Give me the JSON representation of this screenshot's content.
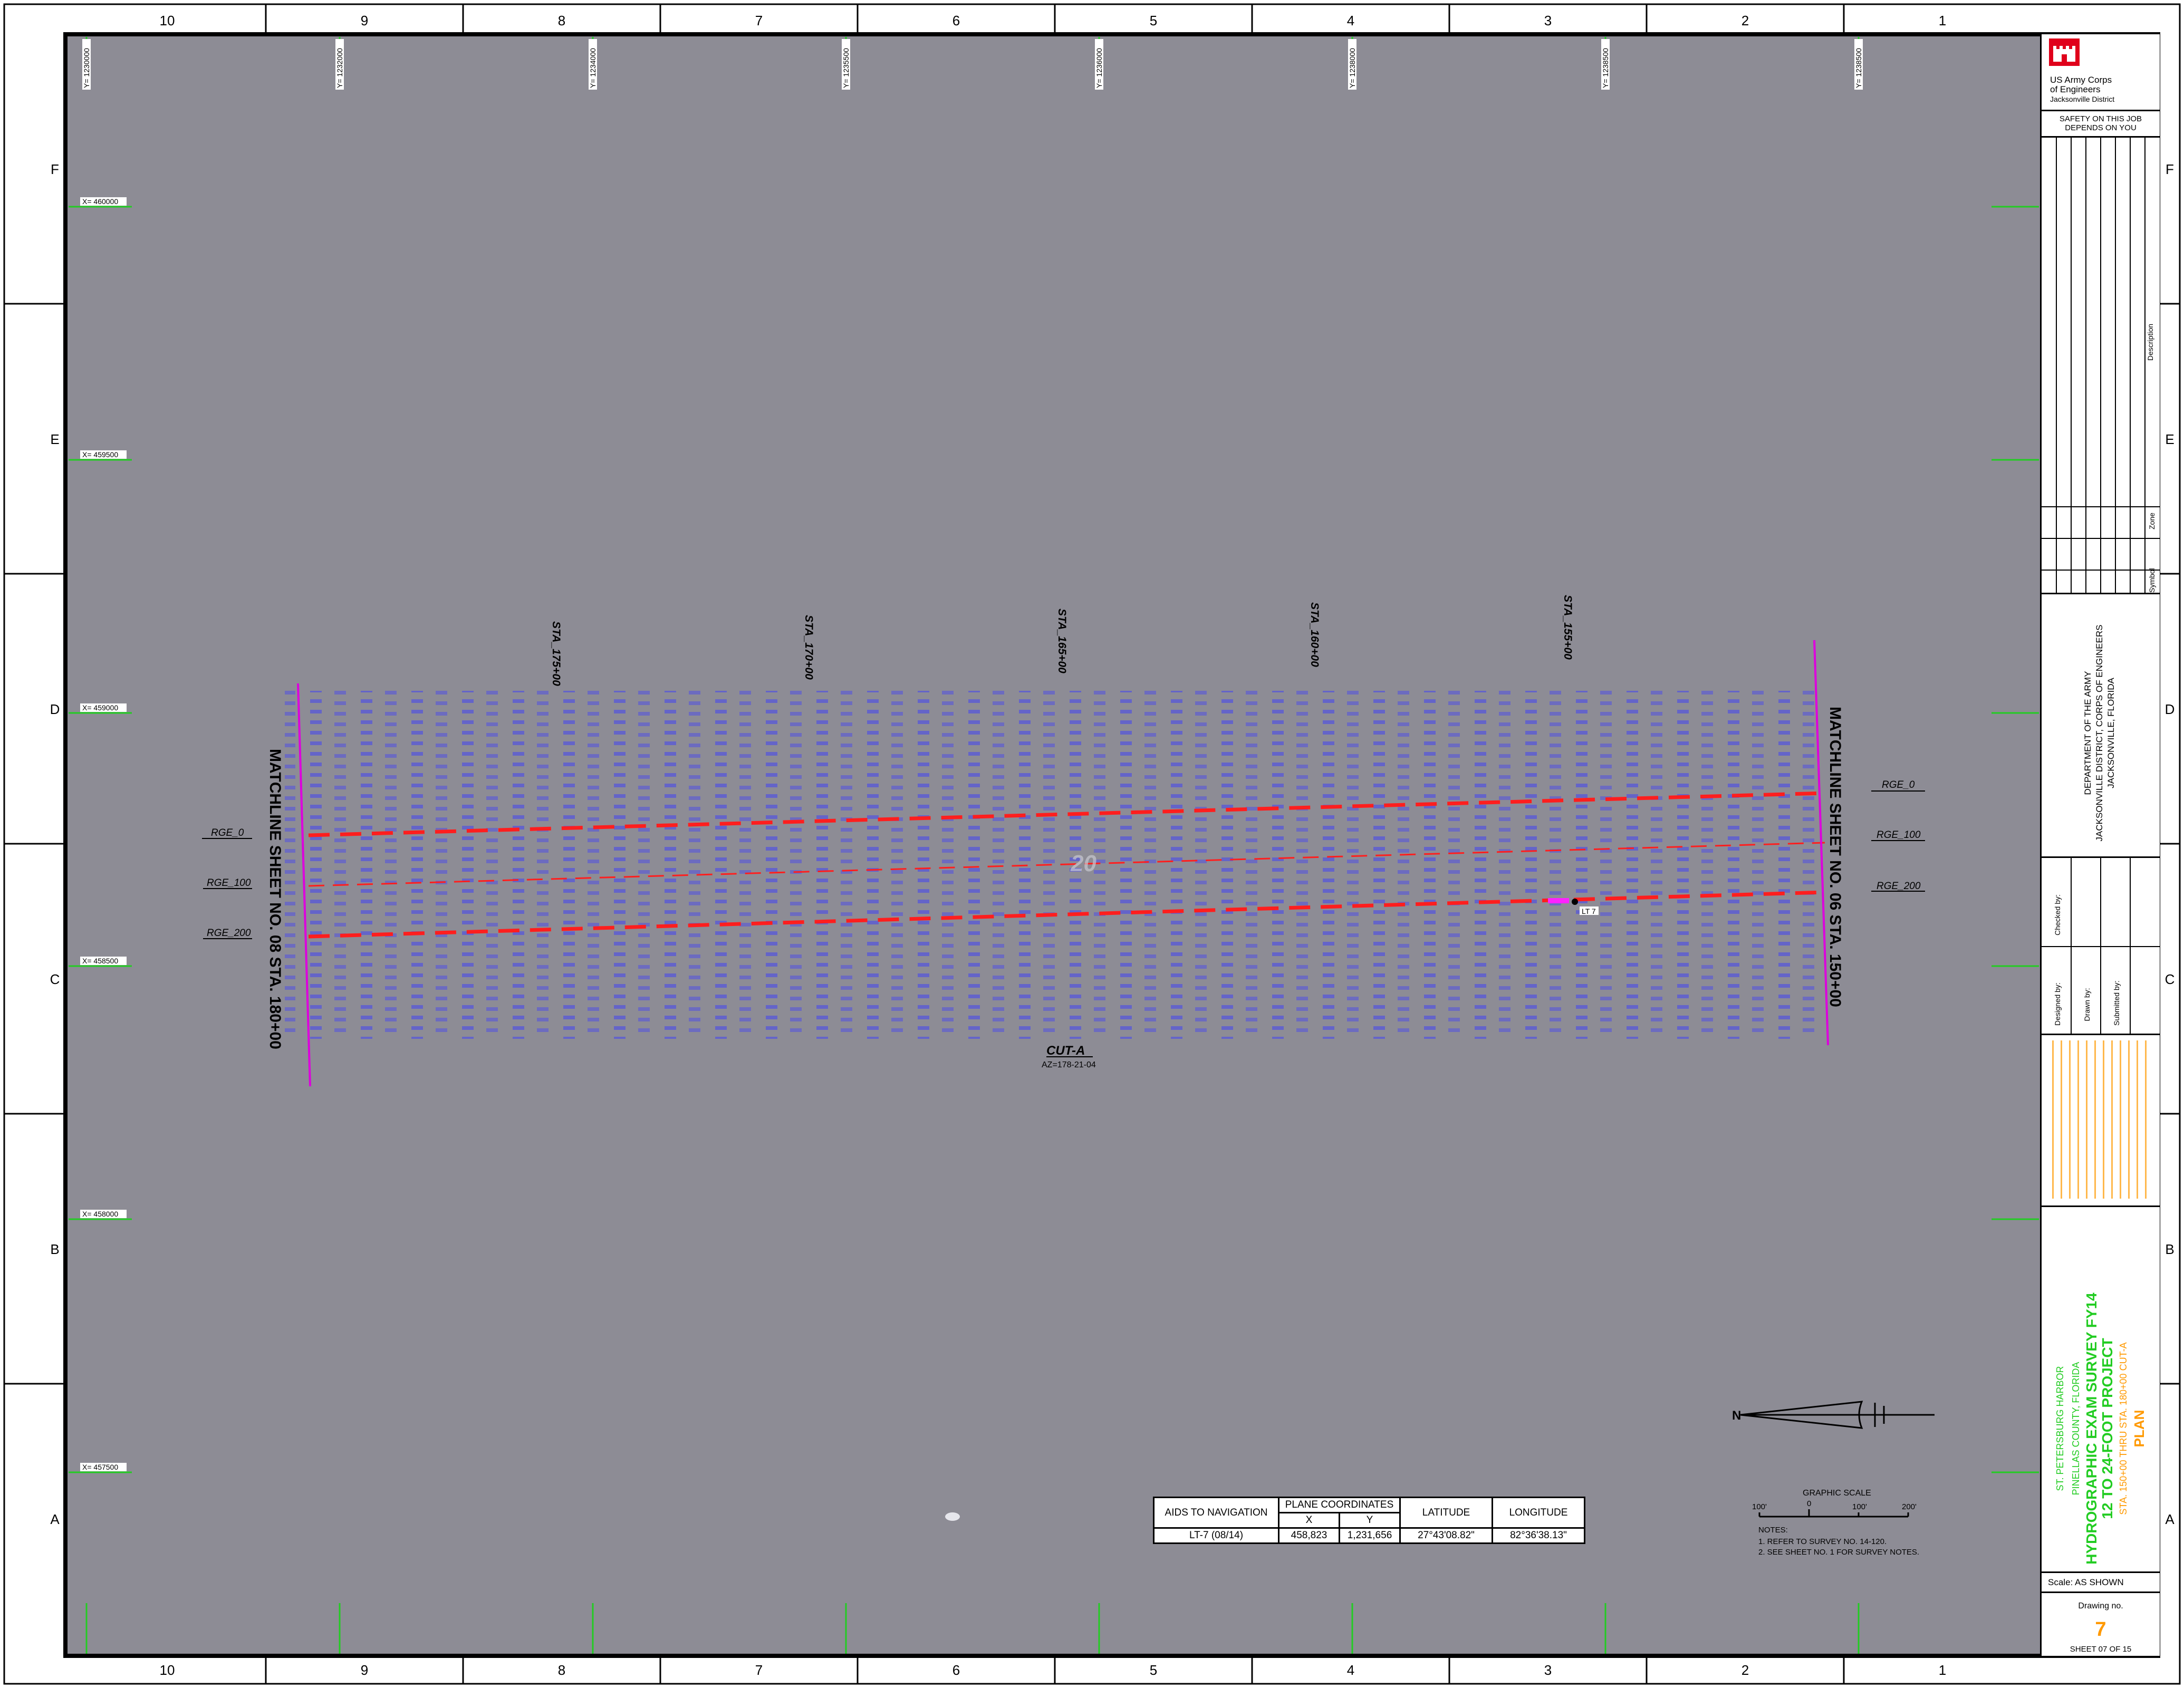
{
  "grid": {
    "columns": [
      "10",
      "9",
      "8",
      "7",
      "6",
      "5",
      "4",
      "3",
      "2",
      "1"
    ],
    "rows": [
      "F",
      "E",
      "D",
      "C",
      "B",
      "A"
    ]
  },
  "coords": {
    "y_ticks": [
      "Y= 1230000",
      "Y= 1232000",
      "Y= 1234000",
      "Y= 1235500",
      "Y= 1236000",
      "Y= 1238000",
      "Y= 1238500",
      "Y= 1238500"
    ],
    "x_ticks": [
      "X= 460000",
      "X= 459500",
      "X= 459000",
      "X= 458500",
      "X= 458000",
      "X= 457500"
    ]
  },
  "map": {
    "ranges": [
      "RGE_0",
      "RGE_100",
      "RGE_200"
    ],
    "stations": [
      "STA_175+00",
      "STA_170+00",
      "STA_165+00",
      "STA_160+00",
      "STA_155+00"
    ],
    "matchline_left": "MATCHLINE SHEET NO. 08 STA. 180+00",
    "matchline_right": "MATCHLINE SHEET NO. 06 STA. 150+00",
    "cut_label": "CUT-A",
    "cut_azimuth": "AZ=178-21-04",
    "watermark": "20",
    "aid_tag": "LT 7"
  },
  "scale": {
    "title": "GRAPHIC SCALE",
    "ticks": [
      "100'",
      "0",
      "100'",
      "200'"
    ]
  },
  "notes": {
    "heading": "NOTES:",
    "lines": [
      "1. REFER TO SURVEY NO. 14-120.",
      "2. SEE SHEET NO. 1 FOR SURVEY NOTES."
    ]
  },
  "aids_table": {
    "headers": [
      "AIDS TO NAVIGATION",
      "PLANE COORDINATES",
      "LATITUDE",
      "LONGITUDE"
    ],
    "sub_headers": [
      "X",
      "Y"
    ],
    "row": [
      "LT-7 (08/14)",
      "458,823",
      "1,231,656",
      "27°43'08.82\"",
      "82°36'38.13\""
    ]
  },
  "title_block": {
    "agency_line1": "US Army Corps",
    "agency_line2": "of Engineers",
    "agency_line3": "Jacksonville District",
    "safety": "SAFETY ON THIS JOB DEPENDS ON YOU",
    "dept1": "DEPARTMENT OF THE ARMY",
    "dept2": "JACKSONVILLE DISTRICT, CORPS OF ENGINEERS",
    "dept3": "JACKSONVILLE, FLORIDA",
    "project_location": "ST. PETERSBURG HARBOR",
    "county": "PINELLAS COUNTY, FLORIDA",
    "title1": "HYDROGRAPHIC EXAM SURVEY FY14",
    "title2": "12 TO 24-FOOT PROJECT",
    "subtitle": "STA. 150+00 THRU STA. 180+00 CUT-A",
    "plan": "PLAN",
    "scale_label": "Scale:",
    "scale_value": "AS SHOWN",
    "drawing_label": "Drawing no.",
    "drawing_no": "7",
    "sheet": "SHEET 07 OF 15",
    "rev_cols": [
      "Symbol",
      "Zone",
      "Description"
    ],
    "designed_by": "Designed by:",
    "drawn_by": "Drawn by:",
    "checked_by": "Checked by:",
    "submitted_by": "Submitted by:"
  },
  "colors": {
    "sea": "#8d8c95",
    "range_line": "#ff1e1e",
    "matchline": "#dd00dd",
    "sounding": "#3030ff",
    "grid_tick": "#22cc22",
    "accent_orange": "#ff9900",
    "brand_red": "#e0001b"
  }
}
